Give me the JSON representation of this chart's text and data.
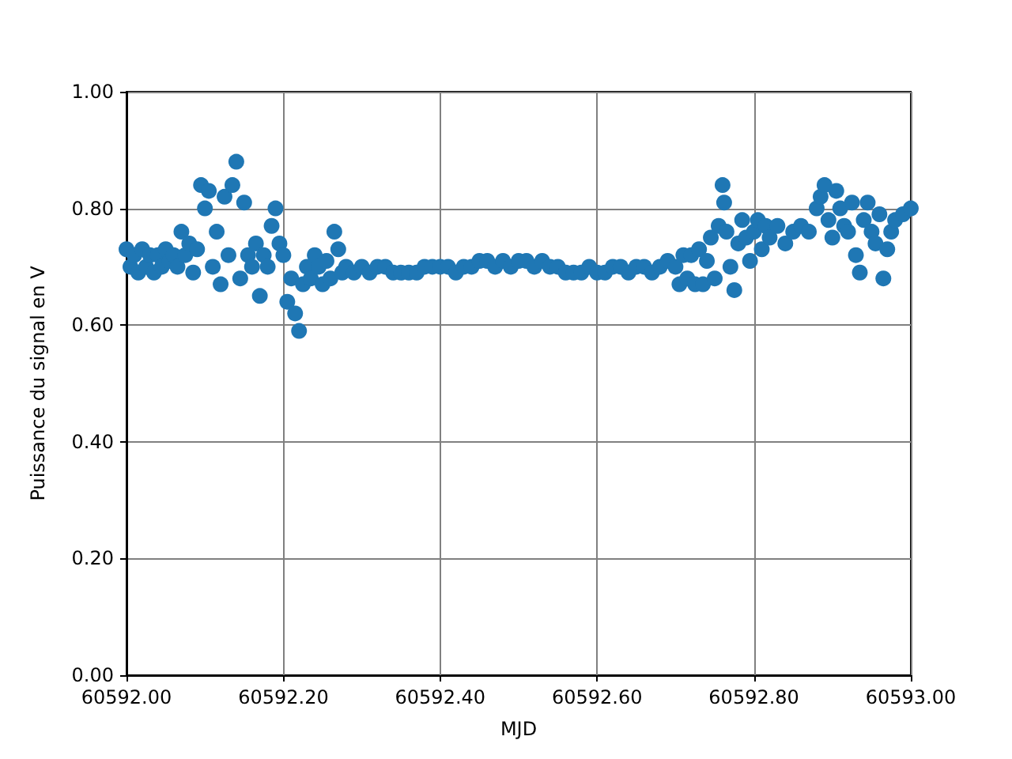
{
  "chart_data": {
    "type": "scatter",
    "xlabel": "MJD",
    "ylabel": "Puissance du signal en V",
    "color": "#1f77b4",
    "marker": "circle",
    "grid": true,
    "xlim": [
      60592.0,
      60593.0
    ],
    "xticks": [
      {
        "value": 60592.0,
        "label": "60592.00"
      },
      {
        "value": 60592.2,
        "label": "60592.20"
      },
      {
        "value": 60592.4,
        "label": "60592.40"
      },
      {
        "value": 60592.6,
        "label": "60592.60"
      },
      {
        "value": 60592.8,
        "label": "60592.80"
      },
      {
        "value": 60593.0,
        "label": "60593.00"
      }
    ],
    "ylim": [
      0,
      1
    ],
    "yticks": [
      {
        "value": 0,
        "label": "0.00"
      },
      {
        "value": 0.2,
        "label": "0.20"
      },
      {
        "value": 0.4,
        "label": "0.40"
      },
      {
        "value": 0.6,
        "label": "0.60"
      },
      {
        "value": 0.8,
        "label": "0.80"
      },
      {
        "value": 1,
        "label": "1.00"
      }
    ],
    "x": [
      60592.0,
      60592.005,
      60592.01,
      60592.015,
      60592.02,
      60592.025,
      60592.03,
      60592.035,
      60592.04,
      60592.045,
      60592.05,
      60592.055,
      60592.06,
      60592.065,
      60592.07,
      60592.075,
      60592.08,
      60592.085,
      60592.09,
      60592.095,
      60592.1,
      60592.105,
      60592.11,
      60592.115,
      60592.12,
      60592.125,
      60592.13,
      60592.135,
      60592.14,
      60592.145,
      60592.15,
      60592.155,
      60592.16,
      60592.165,
      60592.17,
      60592.175,
      60592.18,
      60592.185,
      60592.19,
      60592.195,
      60592.2,
      60592.205,
      60592.21,
      60592.215,
      60592.22,
      60592.225,
      60592.23,
      60592.235,
      60592.24,
      60592.245,
      60592.25,
      60592.255,
      60592.26,
      60592.265,
      60592.27,
      60592.275,
      60592.28,
      60592.29,
      60592.3,
      60592.31,
      60592.32,
      60592.33,
      60592.34,
      60592.35,
      60592.36,
      60592.37,
      60592.38,
      60592.39,
      60592.4,
      60592.41,
      60592.42,
      60592.43,
      60592.44,
      60592.45,
      60592.46,
      60592.47,
      60592.48,
      60592.49,
      60592.5,
      60592.51,
      60592.52,
      60592.53,
      60592.54,
      60592.55,
      60592.56,
      60592.57,
      60592.58,
      60592.59,
      60592.6,
      60592.61,
      60592.62,
      60592.63,
      60592.64,
      60592.65,
      60592.66,
      60592.67,
      60592.68,
      60592.69,
      60592.7,
      60592.705,
      60592.71,
      60592.715,
      60592.72,
      60592.725,
      60592.73,
      60592.735,
      60592.74,
      60592.745,
      60592.75,
      60592.755,
      60592.76,
      60592.762,
      60592.765,
      60592.77,
      60592.775,
      60592.78,
      60592.785,
      60592.79,
      60592.795,
      60592.8,
      60592.805,
      60592.81,
      60592.815,
      60592.82,
      60592.83,
      60592.84,
      60592.85,
      60592.86,
      60592.87,
      60592.88,
      60592.885,
      60592.89,
      60592.895,
      60592.9,
      60592.905,
      60592.91,
      60592.915,
      60592.92,
      60592.925,
      60592.93,
      60592.935,
      60592.94,
      60592.945,
      60592.95,
      60592.955,
      60592.96,
      60592.965,
      60592.97,
      60592.975,
      60592.98,
      60592.99,
      60593.0
    ],
    "values": [
      0.73,
      0.7,
      0.72,
      0.69,
      0.73,
      0.7,
      0.72,
      0.69,
      0.72,
      0.7,
      0.73,
      0.71,
      0.72,
      0.7,
      0.76,
      0.72,
      0.74,
      0.69,
      0.73,
      0.84,
      0.8,
      0.83,
      0.7,
      0.76,
      0.67,
      0.82,
      0.72,
      0.84,
      0.88,
      0.68,
      0.81,
      0.72,
      0.7,
      0.74,
      0.65,
      0.72,
      0.7,
      0.77,
      0.8,
      0.74,
      0.72,
      0.64,
      0.68,
      0.62,
      0.59,
      0.67,
      0.7,
      0.68,
      0.72,
      0.7,
      0.67,
      0.71,
      0.68,
      0.76,
      0.73,
      0.69,
      0.7,
      0.69,
      0.7,
      0.69,
      0.7,
      0.7,
      0.69,
      0.69,
      0.69,
      0.69,
      0.7,
      0.7,
      0.7,
      0.7,
      0.69,
      0.7,
      0.7,
      0.71,
      0.71,
      0.7,
      0.71,
      0.7,
      0.71,
      0.71,
      0.7,
      0.71,
      0.7,
      0.7,
      0.69,
      0.69,
      0.69,
      0.7,
      0.69,
      0.69,
      0.7,
      0.7,
      0.69,
      0.7,
      0.7,
      0.69,
      0.7,
      0.71,
      0.7,
      0.67,
      0.72,
      0.68,
      0.72,
      0.67,
      0.73,
      0.67,
      0.71,
      0.75,
      0.68,
      0.77,
      0.84,
      0.81,
      0.76,
      0.7,
      0.66,
      0.74,
      0.78,
      0.75,
      0.71,
      0.76,
      0.78,
      0.73,
      0.77,
      0.75,
      0.77,
      0.74,
      0.76,
      0.77,
      0.76,
      0.8,
      0.82,
      0.84,
      0.78,
      0.75,
      0.83,
      0.8,
      0.77,
      0.76,
      0.81,
      0.72,
      0.69,
      0.78,
      0.81,
      0.76,
      0.74,
      0.79,
      0.68,
      0.73,
      0.76,
      0.78,
      0.79,
      0.8
    ]
  }
}
